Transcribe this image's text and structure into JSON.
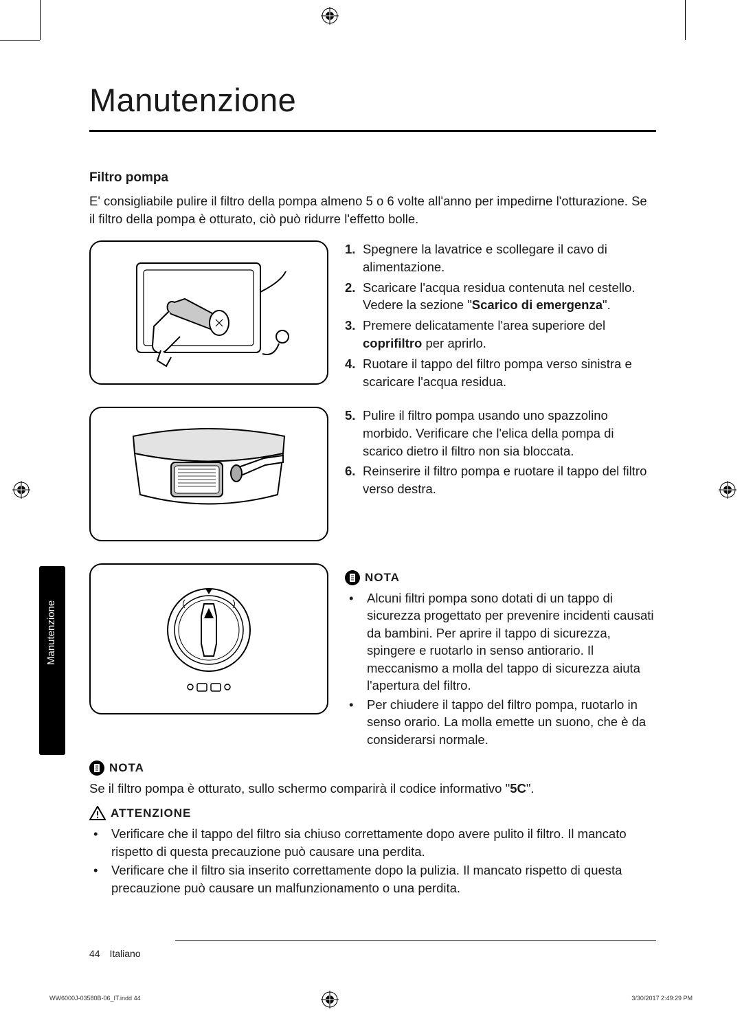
{
  "page": {
    "title": "Manutenzione",
    "section_title": "Filtro pompa",
    "intro": "E' consigliabile pulire il filtro della pompa almeno 5 o 6 volte all'anno per impedirne l'otturazione. Se il filtro della pompa è otturato, ciò  può ridurre l'effetto bolle.",
    "side_tab": "Manutenzione",
    "page_number": "44",
    "language": "Italiano"
  },
  "steps_a": [
    {
      "n": "1.",
      "text": "Spegnere la lavatrice e scollegare il cavo di alimentazione."
    },
    {
      "n": "2.",
      "text_pre": "Scaricare l'acqua residua contenuta nel cestello. Vedere la sezione \"",
      "bold": "Scarico di emergenza",
      "text_post": "\"."
    },
    {
      "n": "3.",
      "text_pre": "Premere delicatamente l'area superiore del ",
      "bold": "coprifiltro",
      "text_post": " per aprirlo."
    },
    {
      "n": "4.",
      "text": "Ruotare il tappo del filtro pompa verso sinistra e scaricare l'acqua residua."
    }
  ],
  "steps_b": [
    {
      "n": "5.",
      "text": "Pulire il filtro pompa usando uno spazzolino morbido. Verificare che l'elica della pompa di scarico dietro il filtro non sia bloccata."
    },
    {
      "n": "6.",
      "text": "Reinserire il filtro pompa e ruotare il tappo del filtro verso destra."
    }
  ],
  "nota_label": "NOTA",
  "nota_c": [
    "Alcuni filtri pompa sono dotati di un tappo di sicurezza progettato  per prevenire incidenti causati da bambini. Per aprire il tappo di sicurezza, spingere e ruotarlo in senso antiorario. Il meccanismo a molla del tappo di sicurezza aiuta l'apertura del filtro.",
    "Per chiudere il tappo del filtro pompa, ruotarlo in senso orario. La molla emette un suono, che è da considerarsi normale."
  ],
  "nota_full_pre": "Se il filtro pompa è otturato, sullo schermo comparirà il codice informativo \"",
  "nota_full_bold": "5C",
  "nota_full_post": "\".",
  "att_label": "ATTENZIONE",
  "att_items": [
    "Verificare che il tappo del filtro sia chiuso correttamente dopo avere pulito il filtro. Il mancato rispetto di questa precauzione può causare una perdita.",
    "Verificare che il filtro sia inserito correttamente dopo la pulizia. Il mancato rispetto di questa precauzione può causare un malfunzionamento o una perdita."
  ],
  "print": {
    "file": "WW6000J-03580B-06_IT.indd   44",
    "timestamp": "3/30/2017   2:49:29 PM"
  }
}
